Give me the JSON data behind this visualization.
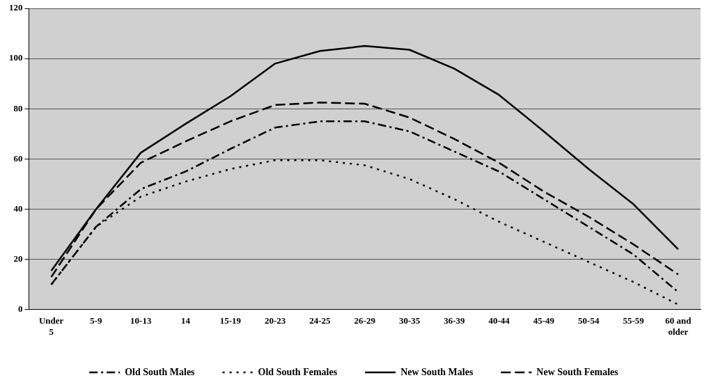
{
  "chart_data": {
    "type": "line",
    "categories": [
      "Under 5",
      "5-9",
      "10-13",
      "14",
      "15-19",
      "20-23",
      "24-25",
      "26-29",
      "30-35",
      "36-39",
      "40-44",
      "45-49",
      "50-54",
      "55-59",
      "60 and older"
    ],
    "series": [
      {
        "name": "Old South Males",
        "color": "#000000",
        "line_style": "dashdot",
        "values": [
          10,
          33,
          48,
          55,
          64,
          72.5,
          75,
          75,
          71,
          63,
          55,
          44,
          33,
          22,
          7
        ]
      },
      {
        "name": "Old South Females",
        "color": "#000000",
        "line_style": "dotted",
        "values": [
          10,
          33,
          45,
          51,
          56,
          59.5,
          59.5,
          57.5,
          52,
          44,
          35,
          27,
          19,
          11,
          2
        ]
      },
      {
        "name": "New South Males",
        "color": "#000000",
        "line_style": "solid",
        "values": [
          15.5,
          40,
          62.5,
          74,
          85,
          98,
          103,
          105,
          103.5,
          96,
          85.5,
          71,
          56,
          42,
          24
        ]
      },
      {
        "name": "New South Females",
        "color": "#000000",
        "line_style": "dashed",
        "values": [
          13,
          40,
          58.5,
          67,
          75,
          81.5,
          82.5,
          82,
          76.5,
          68,
          58.5,
          47,
          37,
          26,
          14
        ]
      }
    ],
    "ylim": [
      0,
      120
    ],
    "yticks": [
      0,
      20,
      40,
      60,
      80,
      100,
      120
    ],
    "grid": "y",
    "legend": "bottom",
    "marker": "none"
  }
}
